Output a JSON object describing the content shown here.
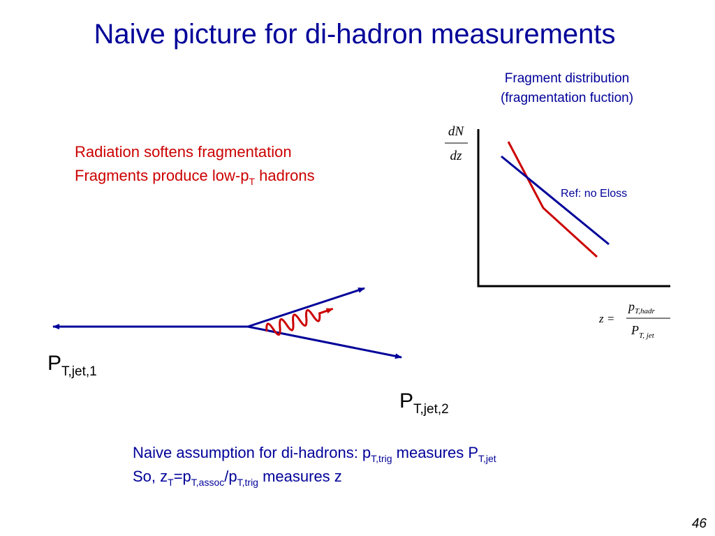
{
  "title": "Naive picture for di-hadron measurements",
  "plot": {
    "title_line1": "Fragment distribution",
    "title_line2": "(fragmentation fuction)",
    "y_label": {
      "num": "dN",
      "den": "dz"
    },
    "ref_label": "Ref: no Eloss",
    "x_formula": {
      "lhs": "z =",
      "num": "p",
      "num_sub": "T,hadr",
      "den": "P",
      "den_sub": "T, jet"
    }
  },
  "notes": {
    "line1": "Radiation softens fragmentation",
    "line2": {
      "text": "Fragments produce low-p",
      "sub": "T",
      "tail": " hadrons"
    }
  },
  "jet1": {
    "text": "P",
    "sub": "T,jet,1"
  },
  "jet2": {
    "text": "P",
    "sub": "T,jet,2"
  },
  "assumption": {
    "line1": {
      "a": "Naive assumption for di-hadrons: p",
      "a_sub": "T,trig",
      "b": " measures P",
      "b_sub": "T,jet"
    },
    "line2": {
      "a": "So, z",
      "a_sub": "T",
      "b": "=p",
      "b_sub": "T,assoc",
      "c": "/p",
      "c_sub": "T,trig",
      "d": " measures z"
    }
  },
  "page_number": "46"
}
